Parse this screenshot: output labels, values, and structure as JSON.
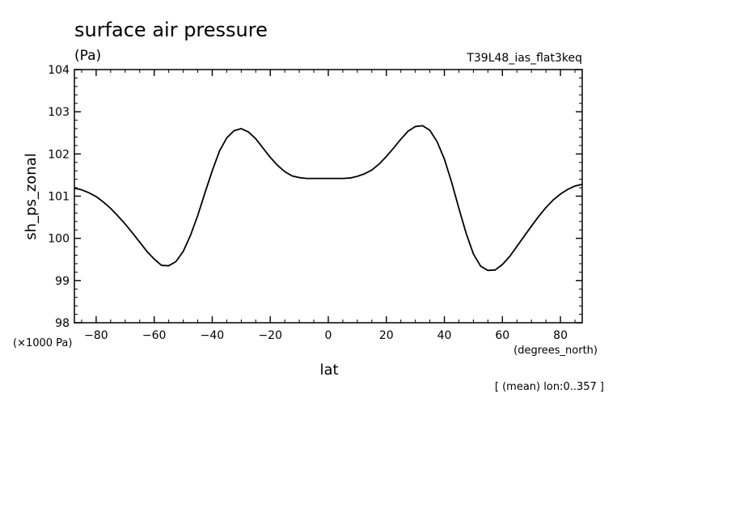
{
  "chart_data": {
    "type": "line",
    "title": "surface air pressure",
    "units": "(Pa)",
    "run_label": "T39L48_ias_flat3keq",
    "ylabel": "sh_ps_zonal",
    "y_scale_label": "(×1000 Pa)",
    "xlabel": "lat",
    "x_units_label": "(degrees_north)",
    "note": "[ (mean) lon:0..357 ]",
    "xlim": [
      -87.5,
      87.5
    ],
    "ylim": [
      98,
      104
    ],
    "x_ticks": [
      -80,
      -60,
      -40,
      -20,
      0,
      20,
      40,
      60,
      80
    ],
    "x_tick_labels": [
      "−80",
      "−60",
      "−40",
      "−20",
      "0",
      "20",
      "40",
      "60",
      "80"
    ],
    "y_ticks": [
      98,
      99,
      100,
      101,
      102,
      103,
      104
    ],
    "y_tick_labels": [
      "98",
      "99",
      "100",
      "101",
      "102",
      "103",
      "104"
    ],
    "x_minor_step": 5,
    "y_minor_step": 0.2,
    "grid": false,
    "series": [
      {
        "x": [
          -87.5,
          -85,
          -82.5,
          -80,
          -77.5,
          -75,
          -72.5,
          -70,
          -67.5,
          -65,
          -62.5,
          -60,
          -57.5,
          -55,
          -52.5,
          -50,
          -47.5,
          -45,
          -42.5,
          -40,
          -37.5,
          -35,
          -32.5,
          -30,
          -27.5,
          -25,
          -22.5,
          -20,
          -17.5,
          -15,
          -12.5,
          -10,
          -7.5,
          -5,
          -2.5,
          0,
          2.5,
          5,
          7.5,
          10,
          12.5,
          15,
          17.5,
          20,
          22.5,
          25,
          27.5,
          30,
          32.5,
          35,
          37.5,
          40,
          42.5,
          45,
          47.5,
          50,
          52.5,
          55,
          57.5,
          60,
          62.5,
          65,
          67.5,
          70,
          72.5,
          75,
          77.5,
          80,
          82.5,
          85,
          87.5
        ],
        "values": [
          101.19,
          101.15,
          101.08,
          100.99,
          100.86,
          100.71,
          100.53,
          100.34,
          100.13,
          99.91,
          99.69,
          99.51,
          99.36,
          99.35,
          99.45,
          99.69,
          100.07,
          100.54,
          101.08,
          101.6,
          102.07,
          102.38,
          102.55,
          102.6,
          102.52,
          102.36,
          102.14,
          101.92,
          101.73,
          101.58,
          101.48,
          101.44,
          101.42,
          101.42,
          101.42,
          101.42,
          101.42,
          101.42,
          101.43,
          101.47,
          101.53,
          101.62,
          101.76,
          101.94,
          102.14,
          102.35,
          102.54,
          102.65,
          102.67,
          102.56,
          102.29,
          101.88,
          101.33,
          100.71,
          100.12,
          99.63,
          99.34,
          99.24,
          99.25,
          99.38,
          99.57,
          99.81,
          100.05,
          100.29,
          100.52,
          100.73,
          100.91,
          101.05,
          101.16,
          101.24,
          101.28
        ]
      }
    ]
  }
}
